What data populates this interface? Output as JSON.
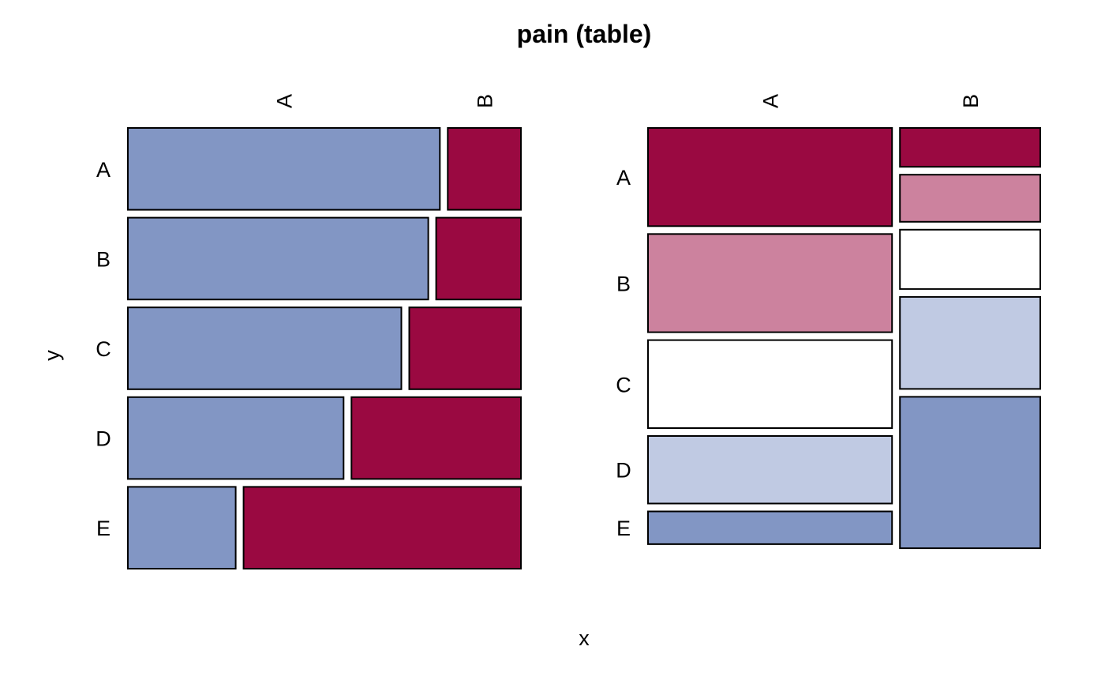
{
  "chart_data": {
    "type": "mosaic",
    "title": "pain (table)",
    "xlabel": "x",
    "ylabel": "y",
    "colors": {
      "dark_blue": "#8296C4",
      "light_blue": "#C0CAE3",
      "white": "#FFFFFF",
      "light_red": "#CC829E",
      "dark_red": "#9A0941"
    },
    "panels": [
      {
        "x_categories": [
          "A",
          "B"
        ],
        "y_categories": [
          "A",
          "B",
          "C",
          "D",
          "E"
        ],
        "rows": [
          {
            "y": "A",
            "proportions": [
              0.81,
              0.19
            ],
            "colors": [
              "#8296C4",
              "#9A0941"
            ]
          },
          {
            "y": "B",
            "proportions": [
              0.78,
              0.22
            ],
            "colors": [
              "#8296C4",
              "#9A0941"
            ]
          },
          {
            "y": "C",
            "proportions": [
              0.71,
              0.29
            ],
            "colors": [
              "#8296C4",
              "#9A0941"
            ]
          },
          {
            "y": "D",
            "proportions": [
              0.56,
              0.44
            ],
            "colors": [
              "#8296C4",
              "#9A0941"
            ]
          },
          {
            "y": "E",
            "proportions": [
              0.28,
              0.72
            ],
            "colors": [
              "#8296C4",
              "#9A0941"
            ]
          }
        ]
      },
      {
        "x_categories": [
          "A",
          "B"
        ],
        "y_categories": [
          "A",
          "B",
          "C",
          "D",
          "E"
        ],
        "columns": [
          {
            "x": "A",
            "width": 0.635,
            "proportions": [
              0.24,
              0.24,
              0.215,
              0.165,
              0.08
            ],
            "colors": [
              "#9A0941",
              "#CC829E",
              "#FFFFFF",
              "#C0CAE3",
              "#8296C4"
            ]
          },
          {
            "x": "B",
            "width": 0.365,
            "proportions": [
              0.095,
              0.115,
              0.145,
              0.225,
              0.37
            ],
            "colors": [
              "#9A0941",
              "#CC829E",
              "#FFFFFF",
              "#C0CAE3",
              "#8296C4"
            ]
          }
        ]
      }
    ]
  }
}
